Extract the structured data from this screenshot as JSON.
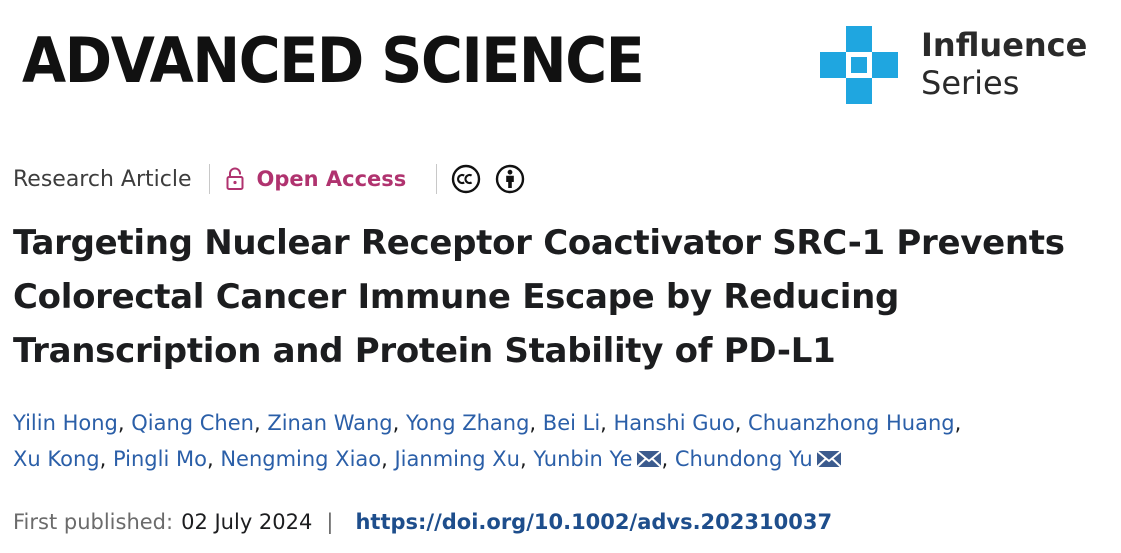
{
  "masthead": {
    "journal_name": "ADVANCED SCIENCE",
    "series_line1": "Influence",
    "series_line2": "Series",
    "series_icon": "plus-mosaic-icon",
    "series_color": "#1fa6e0"
  },
  "meta": {
    "article_type": "Research Article",
    "access_label": "Open Access",
    "access_icon": "lock-open-icon",
    "access_color": "#b0336f",
    "license_icons": [
      "creative-commons-icon",
      "attribution-icon"
    ]
  },
  "article": {
    "title_lines": [
      "Targeting Nuclear Receptor Coactivator SRC-1 Prevents",
      "Colorectal Cancer Immune Escape by Reducing",
      "Transcription and Protein Stability of PD-L1"
    ],
    "authors": [
      {
        "name": "Yilin Hong"
      },
      {
        "name": "Qiang Chen"
      },
      {
        "name": "Zinan Wang"
      },
      {
        "name": "Yong Zhang"
      },
      {
        "name": "Bei Li"
      },
      {
        "name": "Hanshi Guo"
      },
      {
        "name": "Chuanzhong Huang"
      },
      {
        "name": "Xu Kong"
      },
      {
        "name": "Pingli Mo"
      },
      {
        "name": "Nengming Xiao"
      },
      {
        "name": "Jianming Xu"
      },
      {
        "name": "Yunbin Ye",
        "corresponding": true
      },
      {
        "name": "Chundong Yu",
        "corresponding": true
      }
    ],
    "link_color": "#2b5fa8"
  },
  "publication": {
    "first_published_label": "First published:",
    "date": "02 July 2024",
    "separator": "|",
    "doi": "https://doi.org/10.1002/advs.202310037"
  }
}
